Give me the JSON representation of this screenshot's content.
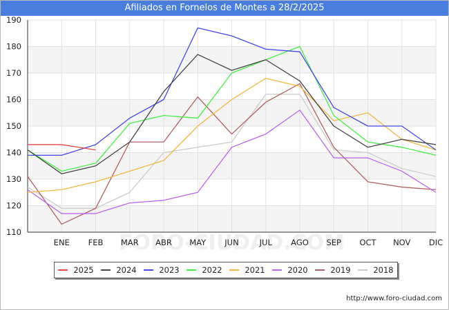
{
  "title": "Afiliados en Fornelos de Montes a 28/2/2025",
  "source": "http://www.foro-ciudad.com",
  "watermark": "FORO-CIUDAD.COM",
  "chart_data": {
    "type": "line",
    "title": "Afiliados en Fornelos de Montes a 28/2/2025",
    "xlabel": "",
    "ylabel": "",
    "x_labels": [
      "",
      "ENE",
      "FEB",
      "MAR",
      "ABR",
      "MAY",
      "JUN",
      "JUL",
      "AGO",
      "SEP",
      "OCT",
      "NOV",
      "DIC"
    ],
    "ylim": [
      110,
      190
    ],
    "y_ticks": [
      110,
      120,
      130,
      140,
      150,
      160,
      170,
      180,
      190
    ],
    "grid": true,
    "legend_position": "bottom",
    "series": [
      {
        "name": "2025",
        "color": "#ee4444",
        "values": [
          143,
          143,
          141
        ]
      },
      {
        "name": "2024",
        "color": "#444444",
        "values": [
          141,
          132,
          135,
          144,
          163,
          177,
          171,
          175,
          167,
          150,
          142,
          145,
          143
        ]
      },
      {
        "name": "2023",
        "color": "#4444ee",
        "values": [
          139,
          139,
          143,
          153,
          160,
          187,
          184,
          179,
          178,
          157,
          150,
          150,
          141
        ]
      },
      {
        "name": "2022",
        "color": "#44ee44",
        "values": [
          141,
          133,
          136,
          151,
          154,
          153,
          170,
          175,
          180,
          154,
          144,
          142,
          139
        ]
      },
      {
        "name": "2021",
        "color": "#f0b840",
        "values": [
          125,
          126,
          129,
          133,
          137,
          150,
          160,
          168,
          165,
          152,
          155,
          145,
          141
        ]
      },
      {
        "name": "2020",
        "color": "#bb66ee",
        "values": [
          126,
          117,
          117,
          121,
          122,
          125,
          142,
          147,
          156,
          138,
          138,
          133,
          125
        ]
      },
      {
        "name": "2019",
        "color": "#b06060",
        "values": [
          131,
          113,
          119,
          144,
          144,
          161,
          147,
          159,
          166,
          142,
          129,
          127,
          126
        ]
      },
      {
        "name": "2018",
        "color": "#cccccc",
        "values": [
          127,
          119,
          119,
          125,
          140,
          142,
          144,
          162,
          162,
          141,
          140,
          134,
          131
        ]
      }
    ]
  }
}
